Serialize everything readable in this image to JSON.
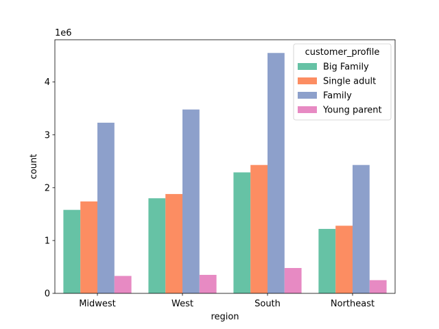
{
  "chart_data": {
    "type": "bar",
    "xlabel": "region",
    "ylabel": "count",
    "y_scale_label": "1e6",
    "categories": [
      "Midwest",
      "West",
      "South",
      "Northeast"
    ],
    "ylim": [
      0,
      4800000
    ],
    "yticks": [
      0,
      1000000,
      2000000,
      3000000,
      4000000
    ],
    "ytick_labels": [
      "0",
      "1",
      "2",
      "3",
      "4"
    ],
    "grid": false,
    "legend": {
      "title": "customer_profile",
      "placement": "top-right"
    },
    "series": [
      {
        "name": "Big Family",
        "color": "#66c2a5",
        "values": [
          1580000,
          1800000,
          2290000,
          1220000
        ]
      },
      {
        "name": "Single adult",
        "color": "#fc8d62",
        "values": [
          1740000,
          1880000,
          2430000,
          1280000
        ]
      },
      {
        "name": "Family",
        "color": "#8da0cb",
        "values": [
          3230000,
          3480000,
          4550000,
          2430000
        ]
      },
      {
        "name": "Young parent",
        "color": "#e78ac3",
        "values": [
          330000,
          350000,
          480000,
          250000
        ]
      }
    ]
  }
}
